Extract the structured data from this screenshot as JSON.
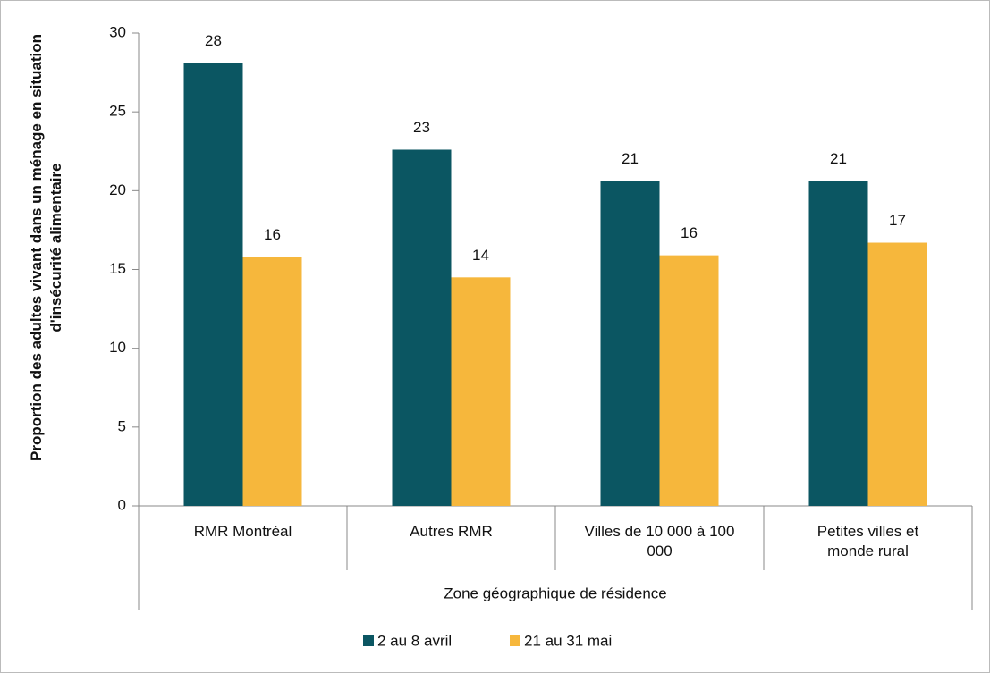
{
  "chart_data": {
    "type": "bar",
    "y_label": "Proportion des adultes vivant dans un ménage en situation d'insécurité alimentaire",
    "x_label": "Zone géographique de résidence",
    "categories": [
      "RMR Montréal",
      "Autres RMR",
      "Villes de 10 000 à 100 000",
      "Petites villes et monde rural"
    ],
    "series": [
      {
        "name": "2 au 8 avril",
        "color": "#0b5662",
        "values": [
          28.1,
          22.6,
          20.6,
          20.6
        ],
        "value_labels": [
          "28",
          "23",
          "21",
          "21"
        ]
      },
      {
        "name": "21 au 31 mai",
        "color": "#f6b73c",
        "values": [
          15.8,
          14.5,
          15.9,
          16.7
        ],
        "value_labels": [
          "16",
          "14",
          "16",
          "17"
        ]
      }
    ],
    "ylim": [
      0,
      30
    ],
    "yticks": [
      0,
      5,
      10,
      15,
      20,
      25,
      30
    ],
    "grid": false,
    "legend": "bottom"
  }
}
